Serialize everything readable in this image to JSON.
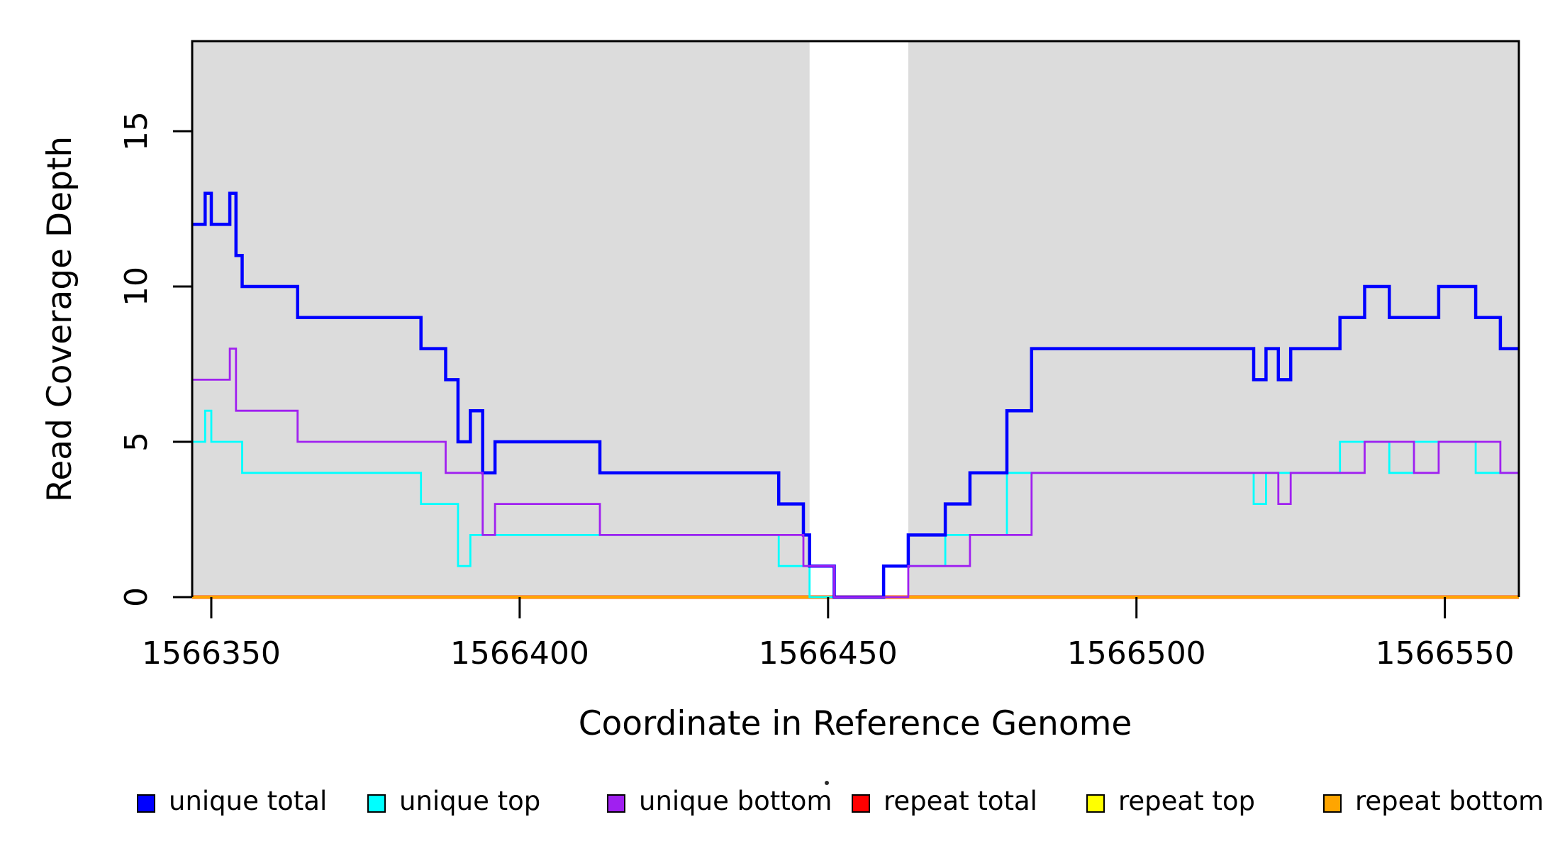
{
  "figure": {
    "background_color": "#FFFFFF",
    "plot_border_color": "#000000"
  },
  "chart_data": {
    "type": "line",
    "step": true,
    "title": "",
    "xlabel": "Coordinate in Reference Genome",
    "ylabel": "Read Coverage Depth",
    "xlim": [
      1566346.9,
      1566562.0
    ],
    "ylim": [
      0,
      17.9
    ],
    "x_ticks": [
      1566350,
      1566400,
      1566450,
      1566500,
      1566550
    ],
    "y_ticks": [
      0,
      5,
      10,
      15
    ],
    "grid": false,
    "legend_position": "bottom",
    "background_bands": [
      {
        "x0": 1566346.9,
        "x1": 1566447,
        "color": "#DCDCDC"
      },
      {
        "x0": 1566463,
        "x1": 1566562.0,
        "color": "#DCDCDC"
      }
    ],
    "series": [
      {
        "name": "repeat total",
        "color": "#FF0000",
        "line_width": 5,
        "points": [
          [
            1566346.9,
            0
          ]
        ]
      },
      {
        "name": "repeat top",
        "color": "#FFFF00",
        "line_width": 4.2,
        "points": [
          [
            1566346.9,
            0
          ]
        ]
      },
      {
        "name": "repeat bottom",
        "color": "#FFA500",
        "line_width": 4,
        "points": [
          [
            1566346.9,
            0
          ]
        ]
      },
      {
        "name": "unique top",
        "color": "#00FFFF",
        "line_width": 2.8,
        "points": [
          [
            1566346.9,
            5
          ],
          [
            1566349,
            6
          ],
          [
            1566350,
            5
          ],
          [
            1566355,
            4
          ],
          [
            1566384,
            3
          ],
          [
            1566390,
            1
          ],
          [
            1566392,
            2
          ],
          [
            1566442,
            1
          ],
          [
            1566447,
            0
          ],
          [
            1566459,
            1
          ],
          [
            1566469,
            2
          ],
          [
            1566479,
            4
          ],
          [
            1566519,
            3
          ],
          [
            1566521,
            4
          ],
          [
            1566533,
            5
          ],
          [
            1566541,
            4
          ],
          [
            1566545,
            5
          ],
          [
            1566555,
            4
          ]
        ]
      },
      {
        "name": "unique total",
        "color": "#0000FF",
        "line_width": 4.5,
        "points": [
          [
            1566346.9,
            12
          ],
          [
            1566349,
            13
          ],
          [
            1566350,
            12
          ],
          [
            1566353,
            13
          ],
          [
            1566354,
            11
          ],
          [
            1566355,
            10
          ],
          [
            1566364,
            9
          ],
          [
            1566384,
            8
          ],
          [
            1566388,
            7
          ],
          [
            1566390,
            5
          ],
          [
            1566392,
            6
          ],
          [
            1566394,
            4
          ],
          [
            1566396,
            5
          ],
          [
            1566413,
            4
          ],
          [
            1566442,
            3
          ],
          [
            1566446,
            2
          ],
          [
            1566447,
            1
          ],
          [
            1566451,
            0
          ],
          [
            1566459,
            1
          ],
          [
            1566463,
            2
          ],
          [
            1566469,
            3
          ],
          [
            1566473,
            4
          ],
          [
            1566479,
            6
          ],
          [
            1566483,
            8
          ],
          [
            1566519,
            7
          ],
          [
            1566521,
            8
          ],
          [
            1566523,
            7
          ],
          [
            1566525,
            8
          ],
          [
            1566533,
            9
          ],
          [
            1566537,
            10
          ],
          [
            1566541,
            9
          ],
          [
            1566549,
            10
          ],
          [
            1566555,
            9
          ],
          [
            1566559,
            8
          ]
        ]
      },
      {
        "name": "unique bottom",
        "color": "#A020F0",
        "line_width": 2.8,
        "points": [
          [
            1566346.9,
            7
          ],
          [
            1566353,
            8
          ],
          [
            1566354,
            6
          ],
          [
            1566364,
            5
          ],
          [
            1566388,
            4
          ],
          [
            1566394,
            2
          ],
          [
            1566396,
            3
          ],
          [
            1566413,
            2
          ],
          [
            1566446,
            1
          ],
          [
            1566451,
            0
          ],
          [
            1566463,
            1
          ],
          [
            1566473,
            2
          ],
          [
            1566483,
            4
          ],
          [
            1566523,
            3
          ],
          [
            1566525,
            4
          ],
          [
            1566537,
            5
          ],
          [
            1566545,
            4
          ],
          [
            1566549,
            5
          ],
          [
            1566559,
            4
          ]
        ]
      }
    ],
    "legend": [
      {
        "label": "unique total",
        "color": "#0000FF"
      },
      {
        "label": "unique top",
        "color": "#00FFFF"
      },
      {
        "label": "unique bottom",
        "color": "#A020F0"
      },
      {
        "label": "repeat total",
        "color": "#FF0000"
      },
      {
        "label": "repeat top",
        "color": "#FFFF00"
      },
      {
        "label": "repeat bottom",
        "color": "#FFA500"
      }
    ]
  }
}
